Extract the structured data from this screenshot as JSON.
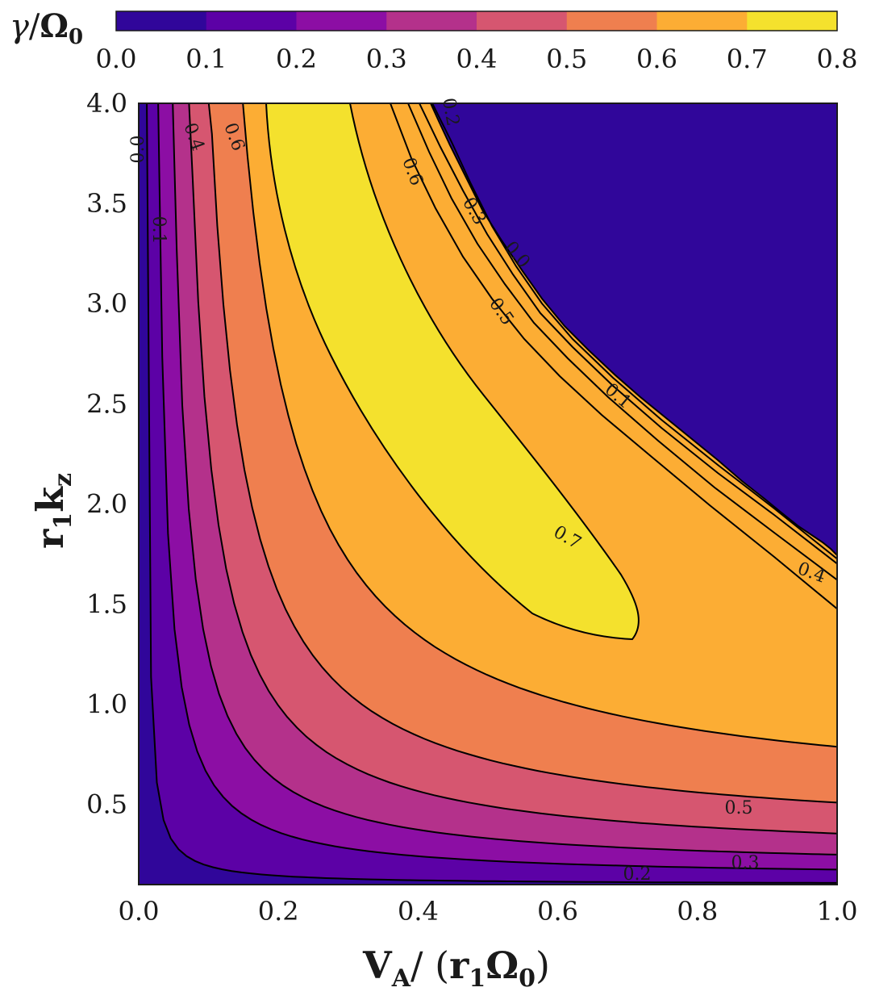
{
  "chart_data": {
    "type": "contour",
    "title": "",
    "xlabel": "V_A/ (r_1 Ω_0)",
    "ylabel": "r_1 k_z",
    "xlim": [
      0.0,
      1.0
    ],
    "ylim": [
      0.1,
      4.0
    ],
    "xticks": [
      "0.0",
      "0.2",
      "0.4",
      "0.6",
      "0.8",
      "1.0"
    ],
    "yticks": [
      "0.5",
      "1.0",
      "1.5",
      "2.0",
      "2.5",
      "3.0",
      "3.5",
      "4.0"
    ],
    "colorbar": {
      "label": "γ/Ω_0",
      "placement": "top",
      "ticks": [
        "0.0",
        "0.1",
        "0.2",
        "0.3",
        "0.4",
        "0.5",
        "0.6",
        "0.7",
        "0.8"
      ],
      "colors": [
        "#30069a",
        "#5c01a6",
        "#8c0ea4",
        "#b4318b",
        "#d65670",
        "#ef7f4f",
        "#fcad34",
        "#f4e12d"
      ]
    },
    "levels": [
      0.1,
      0.2,
      0.3,
      0.4,
      0.5,
      0.6,
      0.7
    ],
    "contour_labels": [
      "0.0",
      "0.1",
      "0.4",
      "0.6",
      "0.6",
      "0.3",
      "0.0",
      "0.5",
      "0.1",
      "0.7",
      "0.4",
      "0.5",
      "0.3",
      "0.2",
      "0.2"
    ],
    "stable_region_color": "#30069a",
    "grid": false
  }
}
